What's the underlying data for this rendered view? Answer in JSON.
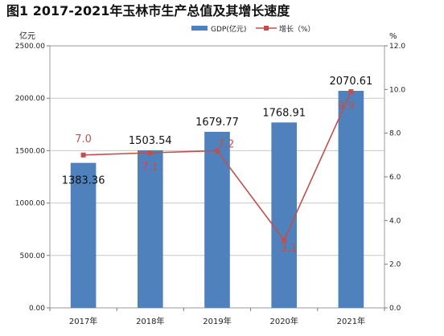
{
  "chart_data": {
    "type": "bar",
    "title": "图1    2017-2021年玉林市生产总值及其增长速度",
    "categories": [
      "2017年",
      "2018年",
      "2019年",
      "2020年",
      "2021年"
    ],
    "y_left": {
      "unit": "亿元",
      "ylim": [
        0,
        2500
      ],
      "ticks": [
        "0.00",
        "500.00",
        "1000.00",
        "1500.00",
        "2000.00",
        "2500.00"
      ]
    },
    "y_right": {
      "unit": "%",
      "ylim": [
        0,
        12
      ],
      "ticks": [
        "0.0",
        "2.0",
        "4.0",
        "6.0",
        "8.0",
        "10.0",
        "12.0"
      ]
    },
    "grid": true,
    "legend_position": "top-right",
    "series": [
      {
        "name": "GDP(亿元)",
        "type": "bar",
        "axis": "left",
        "color": "#4f81bd",
        "values": [
          1383.36,
          1503.54,
          1679.77,
          1768.91,
          2070.61
        ],
        "labels": [
          "1383.36",
          "1503.54",
          "1679.77",
          "1768.91",
          "2070.61"
        ]
      },
      {
        "name": "增长（%）",
        "type": "line",
        "axis": "right",
        "color": "#c0504d",
        "values": [
          7.0,
          7.1,
          7.2,
          3.1,
          9.9
        ],
        "labels": [
          "7.0",
          "7.1",
          "7.2",
          "3.1",
          "9.9"
        ]
      }
    ]
  }
}
